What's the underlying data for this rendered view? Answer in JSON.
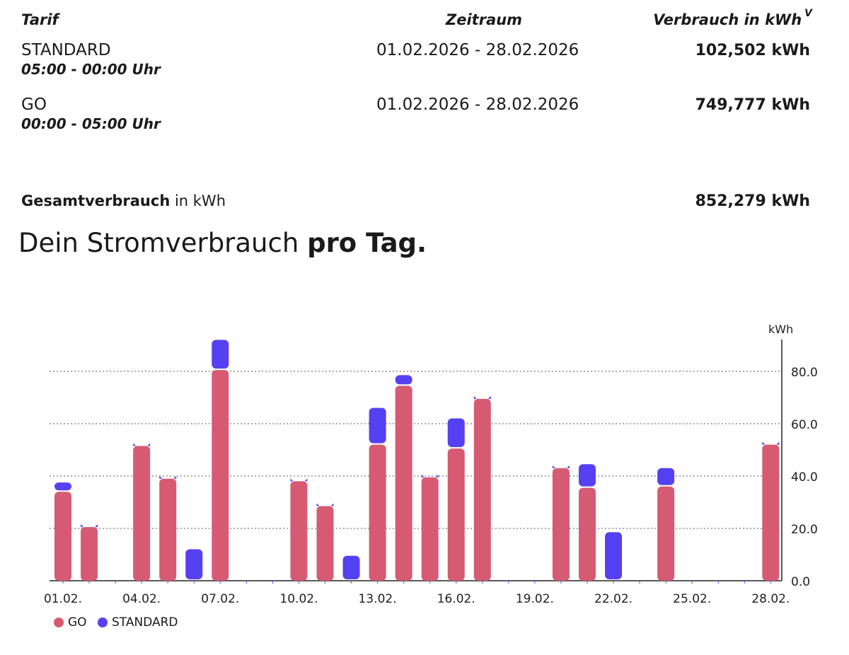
{
  "table": {
    "headers": {
      "tarif": "Tarif",
      "zeitraum": "Zeitraum",
      "verbrauch": "Verbrauch in kWh",
      "sort_marker": "V"
    },
    "rows": [
      {
        "name": "STANDARD",
        "time": "05:00 - 00:00 Uhr",
        "period": "01.02.2026 - 28.02.2026",
        "value": "102,502 kWh"
      },
      {
        "name": "GO",
        "time": "00:00 - 05:00 Uhr",
        "period": "01.02.2026 - 28.02.2026",
        "value": "749,777 kWh"
      }
    ],
    "total": {
      "label_bold": "Gesamtverbrauch",
      "label_rest": " in kWh",
      "value": "852,279 kWh"
    }
  },
  "heading": {
    "normal": "Dein Stromverbrauch ",
    "bold": "pro Tag."
  },
  "colors": {
    "go": "#d65b72",
    "standard": "#5540f2"
  },
  "chart_data": {
    "type": "bar",
    "stacked": true,
    "unit_label": "kWh",
    "ylim": [
      0,
      92
    ],
    "y_ticks": [
      0,
      20,
      40,
      60,
      80
    ],
    "y_tick_labels": [
      "0.0",
      "20.0",
      "40.0",
      "60.0",
      "80.0"
    ],
    "categories": [
      "01.02.",
      "02.02.",
      "03.02.",
      "04.02.",
      "05.02.",
      "06.02.",
      "07.02.",
      "08.02.",
      "09.02.",
      "10.02.",
      "11.02.",
      "12.02.",
      "13.02.",
      "14.02.",
      "15.02.",
      "16.02.",
      "17.02.",
      "18.02.",
      "19.02.",
      "20.02.",
      "21.02.",
      "22.02.",
      "23.02.",
      "24.02.",
      "25.02.",
      "26.02.",
      "27.02.",
      "28.02."
    ],
    "x_tick_labels": [
      "01.02.",
      "04.02.",
      "07.02.",
      "10.02.",
      "13.02.",
      "16.02.",
      "19.02.",
      "22.02.",
      "25.02.",
      "28.02."
    ],
    "x_tick_indices": [
      0,
      3,
      6,
      9,
      12,
      15,
      18,
      21,
      24,
      27
    ],
    "series": [
      {
        "name": "GO",
        "values": [
          34,
          20.5,
          0,
          51.5,
          39,
          0,
          80.5,
          0,
          0,
          38,
          28.5,
          0,
          52,
          74.5,
          39.5,
          50.5,
          69.5,
          0,
          0,
          43,
          35.5,
          0,
          0,
          36,
          0,
          0,
          0,
          52
        ]
      },
      {
        "name": "STANDARD",
        "values": [
          3,
          0.5,
          0,
          0.5,
          0.5,
          11.5,
          11,
          0,
          0,
          0.5,
          0.5,
          9,
          13.5,
          3.5,
          0.5,
          11,
          0.5,
          0,
          0,
          0.5,
          8.5,
          18,
          0,
          6.5,
          0,
          0,
          0,
          0.5
        ]
      }
    ],
    "legend": {
      "position": "bottom-left",
      "entries": [
        "GO",
        "STANDARD"
      ]
    },
    "grid": "horizontal-dotted"
  }
}
